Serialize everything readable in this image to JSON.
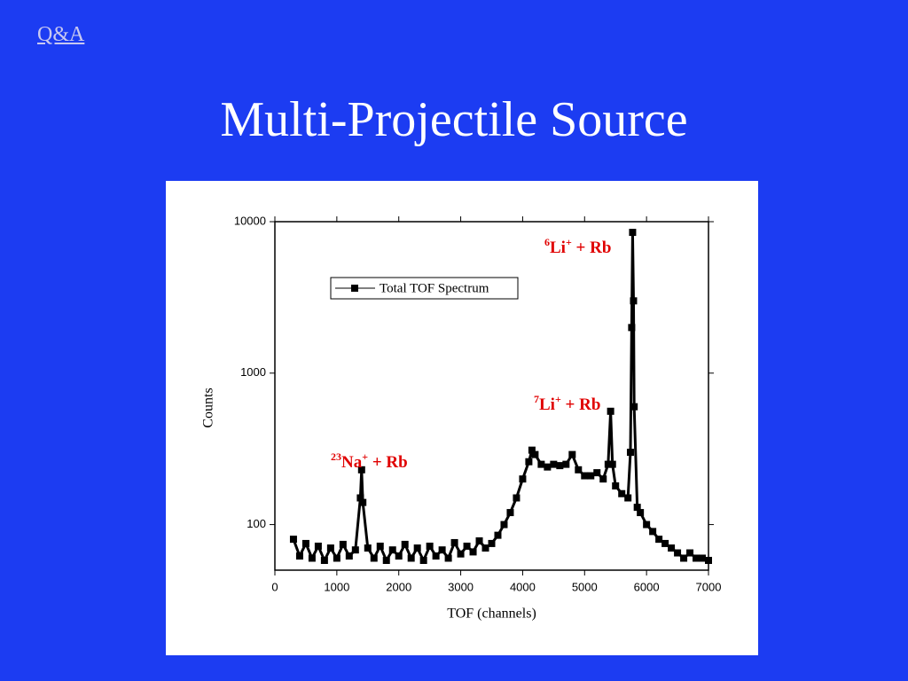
{
  "nav_link": "Q&A",
  "slide_title": "Multi-Projectile Source",
  "chart_data": {
    "type": "scatter",
    "x_label": "TOF (channels)",
    "y_label": "Counts",
    "x": [
      300,
      400,
      500,
      600,
      700,
      800,
      900,
      1000,
      1100,
      1200,
      1300,
      1380,
      1400,
      1420,
      1500,
      1600,
      1700,
      1800,
      1900,
      2000,
      2100,
      2200,
      2300,
      2400,
      2500,
      2600,
      2700,
      2800,
      2900,
      3000,
      3100,
      3200,
      3300,
      3400,
      3500,
      3600,
      3700,
      3800,
      3900,
      4000,
      4100,
      4150,
      4200,
      4300,
      4400,
      4500,
      4600,
      4700,
      4800,
      4900,
      5000,
      5100,
      5200,
      5300,
      5380,
      5420,
      5450,
      5500,
      5600,
      5700,
      5740,
      5760,
      5775,
      5790,
      5800,
      5850,
      5900,
      6000,
      6100,
      6200,
      6300,
      6400,
      6500,
      6600,
      6700,
      6800,
      6900,
      7000
    ],
    "series": [
      {
        "name": "Total TOF Spectrum",
        "color": "#000000",
        "values": [
          80,
          62,
          75,
          60,
          72,
          58,
          70,
          60,
          74,
          62,
          68,
          150,
          230,
          140,
          70,
          60,
          72,
          58,
          68,
          62,
          74,
          60,
          70,
          58,
          72,
          62,
          68,
          60,
          76,
          64,
          72,
          66,
          78,
          70,
          75,
          85,
          100,
          120,
          150,
          200,
          260,
          310,
          290,
          250,
          240,
          250,
          245,
          250,
          290,
          230,
          210,
          210,
          220,
          200,
          250,
          560,
          250,
          180,
          160,
          150,
          300,
          2000,
          8500,
          3000,
          600,
          130,
          120,
          100,
          90,
          80,
          75,
          70,
          65,
          60,
          65,
          60,
          60,
          58
        ]
      }
    ],
    "xlim": [
      0,
      7000
    ],
    "xticks": [
      0,
      1000,
      2000,
      3000,
      4000,
      5000,
      6000,
      7000
    ],
    "ylim": [
      50,
      10000
    ],
    "yticks": [
      100,
      1000,
      10000
    ],
    "y_scale": "log",
    "annotations": [
      {
        "mass": "23",
        "ion": "Na",
        "charge": "+",
        "partner": " + Rb"
      },
      {
        "mass": "7",
        "ion": "Li",
        "charge": "+",
        "partner": " + Rb"
      },
      {
        "mass": "6",
        "ion": "Li",
        "charge": "+",
        "partner": " + Rb"
      }
    ],
    "annotation_color": "#e00000"
  }
}
